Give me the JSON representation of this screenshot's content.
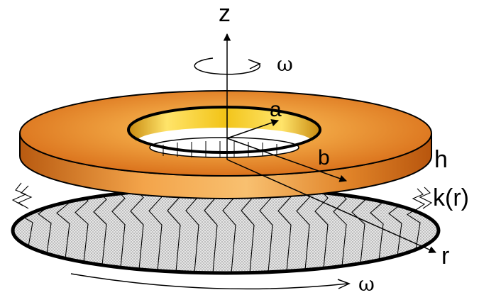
{
  "labels": {
    "z_axis": "z",
    "omega_top": "ω",
    "omega_bottom": "ω",
    "inner_radius": "a",
    "outer_radius": "b",
    "thickness": "h",
    "stiffness": "k(r)",
    "radial_axis": "r"
  },
  "colors": {
    "disk_top_outer": "#d9701a",
    "disk_top_mid": "#f0a040",
    "disk_top_inner": "#f5c060",
    "disk_side_dark": "#b5560e",
    "disk_side_light": "#f7b45a",
    "hole_gold": "#f2c418",
    "foundation_fill": "#d9d9d9",
    "outline": "#000000"
  }
}
